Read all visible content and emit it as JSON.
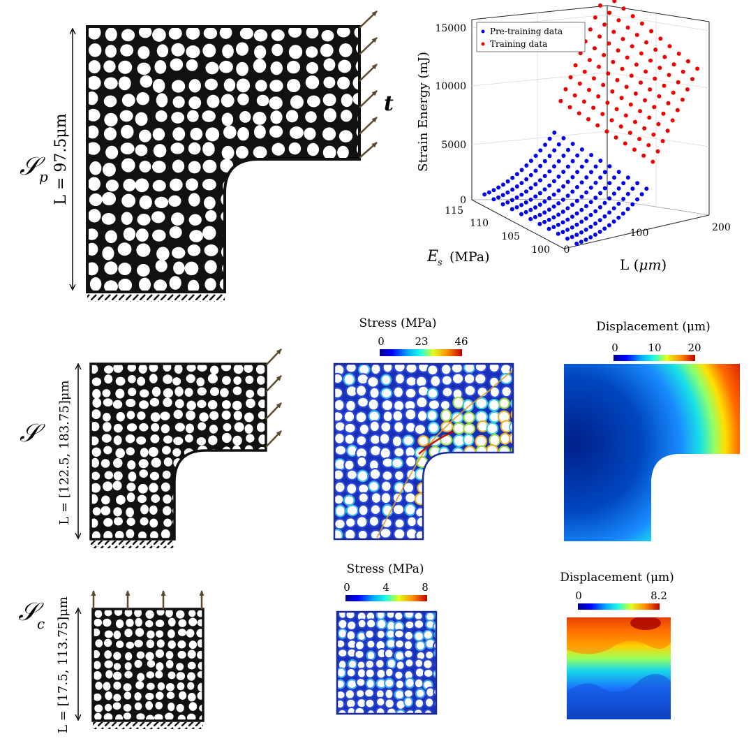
{
  "rows": {
    "sp": {
      "symbol": "𝒮",
      "sub": "p",
      "length_label": "L = 97.5μm",
      "traction": "t"
    },
    "s": {
      "symbol": "𝒮",
      "length_label": "L = [122.5, 183.75]μm"
    },
    "sc": {
      "symbol": "𝒮",
      "sub": "c",
      "length_label": "L = [17.5, 113.75]μm"
    }
  },
  "colorbars": {
    "stress_s": {
      "title": "Stress (MPa)",
      "ticks": [
        "0",
        "23",
        "46"
      ]
    },
    "disp_s": {
      "title": "Displacement (μm)",
      "ticks": [
        "0",
        "10",
        "20"
      ]
    },
    "stress_sc": {
      "title": "Stress (MPa)",
      "ticks": [
        "0",
        "4",
        "8"
      ]
    },
    "disp_sc": {
      "title": "Displacement (μm)",
      "ticks": [
        "0",
        "8.2"
      ]
    }
  },
  "chart_data": {
    "type": "scatter",
    "title": "",
    "zlabel": "Strain Energy (mJ)",
    "ylabel": "E_s (MPa)",
    "ylabel_symbol": "E",
    "ylabel_sub": "s",
    "ylabel_unit": "(MPa)",
    "xlabel": "L (μm)",
    "xlabel_main": "L (",
    "xlabel_mu": "μm",
    "xlabel_close": ")",
    "zlim": [
      0,
      15000
    ],
    "z_ticks": [
      "0",
      "5000",
      "10000",
      "15000"
    ],
    "ylim": [
      100,
      115
    ],
    "y_ticks": [
      "100",
      "105",
      "110",
      "115"
    ],
    "xlim": [
      0,
      200
    ],
    "x_ticks": [
      "0",
      "100",
      "200"
    ],
    "legend": [
      "Pre-training data",
      "Training data"
    ],
    "legend_position": "top-left",
    "series": [
      {
        "name": "Pre-training data",
        "color": "#0000ee",
        "L_range": [
          17.5,
          113.75
        ],
        "E_values": [
          100,
          101.5,
          103,
          104.5,
          106,
          107.5,
          109,
          110.5,
          112,
          113.5,
          115
        ],
        "points_per_line": 16,
        "energy_range": [
          200,
          4000
        ]
      },
      {
        "name": "Training data",
        "color": "#ee0000",
        "L_range": [
          122.5,
          183.75
        ],
        "E_values": [
          100,
          101.5,
          103,
          104.5,
          106,
          107.5,
          109,
          110.5,
          112,
          113.5,
          115
        ],
        "points_per_line": 10,
        "energy_range": [
          6500,
          14600
        ]
      }
    ]
  },
  "colors": {
    "arrow": "#5b4a2e",
    "stroke": "#111111"
  }
}
